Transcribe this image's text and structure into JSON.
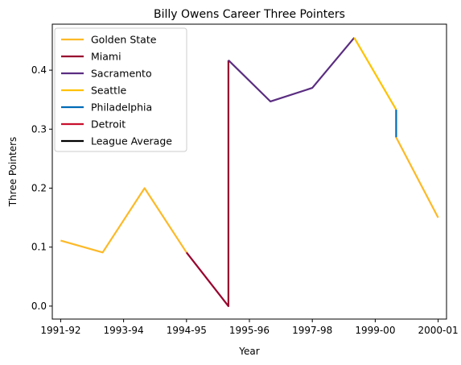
{
  "chart_data": {
    "type": "line",
    "title": "Billy Owens Career Three Pointers",
    "xlabel": "Year",
    "ylabel": "Three Pointers",
    "x_ticks": [
      "1991-92",
      "1993-94",
      "1994-95",
      "1995-96",
      "1997-98",
      "1999-00",
      "2000-01"
    ],
    "y_ticks": [
      "0.0",
      "0.1",
      "0.2",
      "0.3",
      "0.4"
    ],
    "ylim": [
      -0.022,
      0.478
    ],
    "grid": false,
    "legend_position": "top-left",
    "series": [
      {
        "name": "Golden State",
        "color": "#FDB927",
        "points": [
          [
            1991,
            0.111
          ],
          [
            1992,
            0.091
          ],
          [
            1993,
            0.2
          ],
          [
            1994,
            0.091
          ]
        ]
      },
      {
        "name": "Miami",
        "color": "#98002E",
        "points": [
          [
            1994,
            0.091
          ],
          [
            1995,
            0.0
          ],
          [
            1995,
            0.417
          ]
        ]
      },
      {
        "name": "Sacramento",
        "color": "#5A2D81",
        "points": [
          [
            1995,
            0.417
          ],
          [
            1996,
            0.347
          ],
          [
            1997,
            0.37
          ],
          [
            1998,
            0.455
          ]
        ]
      },
      {
        "name": "Seattle",
        "color": "#FFC200",
        "points": [
          [
            1998,
            0.455
          ],
          [
            1999,
            0.333
          ]
        ]
      },
      {
        "name": "Philadelphia",
        "color": "#006BB6",
        "points": [
          [
            1999,
            0.333
          ],
          [
            1999,
            0.286
          ]
        ]
      },
      {
        "name": "Detroit",
        "color": "#C8102E",
        "points": []
      },
      {
        "name": "League Average",
        "color": "#000000",
        "points": []
      },
      {
        "name": "",
        "color": "#FDB927",
        "points": [
          [
            1999,
            0.286
          ],
          [
            2000,
            0.15
          ]
        ]
      }
    ]
  }
}
